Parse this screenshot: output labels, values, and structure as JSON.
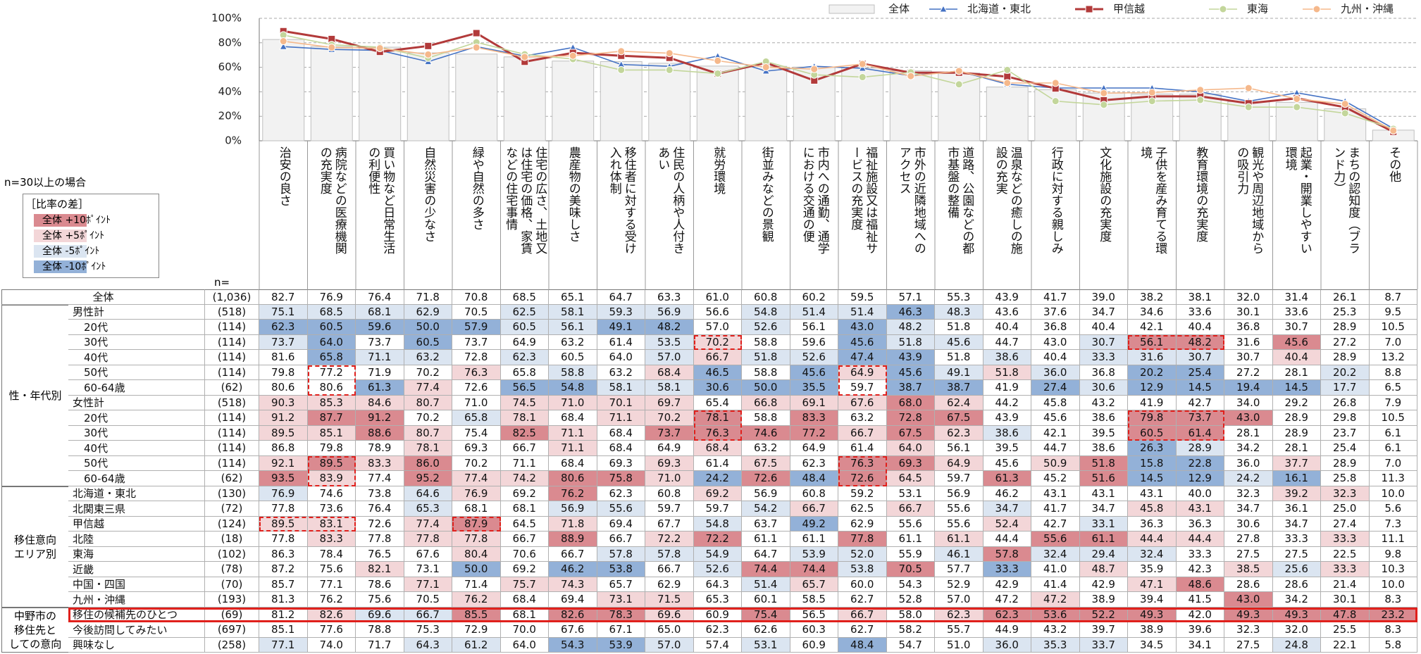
{
  "chart_data": {
    "type": "bar",
    "categories": [
      "治安の良さ",
      "病院などの医療機関の充実度",
      "買い物など日常生活の利便性",
      "自然災害の少なさ",
      "緑や自然の多さ",
      "住宅の広さ、土地又は住宅の価格、家賃などの住宅事情",
      "農産物の美味しさ",
      "移住者に対する受け入れ体制",
      "住民の人柄や人付きあい",
      "就労環境",
      "街並みなどの景観",
      "市内への通勤、通学における交通の便",
      "福祉施設又は福祉サービスの充実度",
      "市外の近隣地域へのアクセス",
      "道路、公園などの都市基盤の整備",
      "温泉などの癒しの施設の充実",
      "行政に対する親しみ",
      "文化施設の充実度",
      "子供を産み育てる環境",
      "教育環境の充実度",
      "観光や周辺地域からの吸引力",
      "起業・開業しやすい環境",
      "まちの認知度（ブランド力）",
      "その他"
    ],
    "series": [
      {
        "name": "全体",
        "kind": "bar",
        "color": "#f2f2f2",
        "values": [
          82.7,
          76.9,
          76.4,
          71.8,
          70.8,
          68.5,
          65.1,
          64.7,
          63.3,
          61.0,
          60.8,
          60.2,
          59.5,
          57.1,
          55.3,
          43.9,
          41.7,
          39.0,
          38.2,
          38.1,
          32.0,
          31.4,
          26.1,
          8.7
        ]
      },
      {
        "name": "北海道・東北",
        "kind": "line",
        "marker": "triangle",
        "color": "#4472c4",
        "values": [
          76.9,
          74.6,
          73.8,
          64.6,
          76.9,
          69.2,
          76.2,
          62.3,
          60.8,
          69.2,
          56.9,
          60.8,
          59.2,
          53.1,
          56.9,
          46.2,
          43.1,
          43.1,
          43.1,
          40.0,
          32.3,
          39.2,
          32.3,
          10.0
        ]
      },
      {
        "name": "甲信越",
        "kind": "line",
        "marker": "square",
        "color": "#b23a3a",
        "values": [
          89.5,
          83.1,
          72.6,
          77.4,
          87.9,
          64.5,
          71.8,
          69.4,
          67.7,
          54.8,
          63.7,
          49.2,
          62.9,
          55.6,
          55.6,
          52.4,
          42.7,
          33.1,
          36.3,
          36.3,
          30.6,
          34.7,
          27.4,
          7.3
        ]
      },
      {
        "name": "東海",
        "kind": "line",
        "marker": "circle",
        "color": "#c3d69b",
        "values": [
          86.3,
          78.4,
          76.5,
          67.6,
          80.4,
          70.6,
          66.7,
          57.8,
          57.8,
          54.9,
          64.7,
          53.9,
          52.0,
          55.9,
          46.1,
          57.8,
          32.4,
          29.4,
          32.4,
          33.3,
          27.5,
          27.5,
          22.5,
          9.8
        ]
      },
      {
        "name": "九州・沖縄",
        "kind": "line",
        "marker": "circle",
        "color": "#f5b88b",
        "values": [
          81.3,
          76.2,
          75.6,
          70.5,
          76.2,
          68.4,
          69.4,
          73.1,
          71.5,
          65.3,
          60.1,
          58.5,
          62.7,
          52.8,
          57.0,
          47.2,
          47.2,
          38.9,
          39.4,
          41.5,
          43.0,
          34.2,
          30.1,
          8.3
        ]
      }
    ],
    "ylim": [
      0,
      100
    ],
    "yticks": [
      {
        "value": 0,
        "label": "0%"
      },
      {
        "value": 20,
        "label": "20%"
      },
      {
        "value": 40,
        "label": "40%"
      },
      {
        "value": 60,
        "label": "60%"
      },
      {
        "value": 80,
        "label": "80%"
      },
      {
        "value": 100,
        "label": "100%"
      }
    ],
    "grid": true,
    "legend": "top-right"
  },
  "legend": {
    "note": "n=30以上の場合",
    "title": "［比率の差］",
    "items": [
      {
        "label": "全体 +10ﾎﾟｲﾝﾄ",
        "color": "#da8a90"
      },
      {
        "label": "全体 +5ﾎﾟｲﾝﾄ",
        "color": "#f3d6d8"
      },
      {
        "label": "全体 -5ﾎﾟｲﾝﾄ",
        "color": "#dbe5f1"
      },
      {
        "label": "全体 -10ﾎﾟｲﾝﾄ",
        "color": "#93b1d8"
      }
    ]
  },
  "table": {
    "n_header": "n=",
    "total": {
      "label": "全体",
      "n": "(1,036)",
      "values": [
        82.7,
        76.9,
        76.4,
        71.8,
        70.8,
        68.5,
        65.1,
        64.7,
        63.3,
        61.0,
        60.8,
        60.2,
        59.5,
        57.1,
        55.3,
        43.9,
        41.7,
        39.0,
        38.2,
        38.1,
        32.0,
        31.4,
        26.1,
        8.7
      ]
    },
    "groups": [
      {
        "label": [
          "性・年代別"
        ],
        "rows": [
          {
            "label": "男性計",
            "n": "(518)",
            "values": [
              75.1,
              68.5,
              68.1,
              62.9,
              70.5,
              62.5,
              58.1,
              59.3,
              56.9,
              56.6,
              54.8,
              51.4,
              51.4,
              46.3,
              48.3,
              43.6,
              37.6,
              34.7,
              34.6,
              33.6,
              30.1,
              33.6,
              25.3,
              9.5
            ]
          },
          {
            "label": "20代",
            "n": "(114)",
            "values": [
              62.3,
              60.5,
              59.6,
              50.0,
              57.9,
              60.5,
              56.1,
              49.1,
              48.2,
              57.0,
              52.6,
              56.1,
              43.0,
              48.2,
              51.8,
              40.4,
              36.8,
              40.4,
              42.1,
              40.4,
              36.8,
              30.7,
              28.9,
              10.5
            ]
          },
          {
            "label": "30代",
            "n": "(114)",
            "values": [
              73.7,
              64.0,
              73.7,
              60.5,
              73.7,
              64.9,
              63.2,
              61.4,
              53.5,
              70.2,
              58.8,
              59.6,
              45.6,
              51.8,
              45.6,
              44.7,
              43.0,
              30.7,
              56.1,
              48.2,
              31.6,
              45.6,
              27.2,
              7.0
            ]
          },
          {
            "label": "40代",
            "n": "(114)",
            "values": [
              81.6,
              65.8,
              71.1,
              63.2,
              72.8,
              62.3,
              60.5,
              64.0,
              57.0,
              66.7,
              51.8,
              52.6,
              47.4,
              43.9,
              51.8,
              38.6,
              40.4,
              33.3,
              31.6,
              30.7,
              30.7,
              40.4,
              28.9,
              13.2
            ]
          },
          {
            "label": "50代",
            "n": "(114)",
            "values": [
              79.8,
              77.2,
              71.9,
              70.2,
              76.3,
              65.8,
              58.8,
              63.2,
              68.4,
              46.5,
              58.8,
              45.6,
              64.9,
              45.6,
              49.1,
              51.8,
              36.0,
              36.8,
              20.2,
              25.4,
              27.2,
              28.1,
              20.2,
              8.8
            ]
          },
          {
            "label": "60-64歳",
            "n": "(62)",
            "values": [
              80.6,
              80.6,
              61.3,
              77.4,
              72.6,
              56.5,
              54.8,
              58.1,
              58.1,
              30.6,
              50.0,
              35.5,
              59.7,
              38.7,
              38.7,
              41.9,
              27.4,
              30.6,
              12.9,
              14.5,
              19.4,
              14.5,
              17.7,
              6.5
            ]
          },
          {
            "label": "女性計",
            "n": "(518)",
            "values": [
              90.3,
              85.3,
              84.6,
              80.7,
              71.0,
              74.5,
              71.0,
              70.1,
              69.7,
              65.4,
              66.8,
              69.1,
              67.6,
              68.0,
              62.4,
              44.2,
              45.8,
              43.2,
              41.9,
              42.7,
              34.0,
              29.2,
              26.8,
              7.9
            ]
          },
          {
            "label": "20代",
            "n": "(114)",
            "values": [
              91.2,
              87.7,
              91.2,
              70.2,
              65.8,
              78.1,
              68.4,
              71.1,
              70.2,
              78.1,
              58.8,
              83.3,
              63.2,
              72.8,
              67.5,
              43.9,
              45.6,
              38.6,
              79.8,
              73.7,
              43.0,
              28.9,
              29.8,
              10.5
            ]
          },
          {
            "label": "30代",
            "n": "(114)",
            "values": [
              89.5,
              85.1,
              88.6,
              80.7,
              75.4,
              82.5,
              71.1,
              68.4,
              73.7,
              76.3,
              74.6,
              77.2,
              66.7,
              67.5,
              62.3,
              38.6,
              42.1,
              39.5,
              60.5,
              61.4,
              28.1,
              28.9,
              23.7,
              6.1
            ]
          },
          {
            "label": "40代",
            "n": "(114)",
            "values": [
              86.8,
              79.8,
              78.9,
              78.1,
              69.3,
              66.7,
              71.1,
              68.4,
              64.9,
              68.4,
              63.2,
              64.9,
              61.4,
              64.0,
              56.1,
              39.5,
              44.7,
              38.6,
              26.3,
              28.9,
              34.2,
              28.1,
              25.4,
              6.1
            ]
          },
          {
            "label": "50代",
            "n": "(114)",
            "values": [
              92.1,
              89.5,
              83.3,
              86.0,
              70.2,
              71.1,
              68.4,
              69.3,
              69.3,
              61.4,
              67.5,
              62.3,
              76.3,
              69.3,
              64.9,
              45.6,
              50.9,
              51.8,
              15.8,
              22.8,
              36.0,
              37.7,
              28.9,
              7.0
            ]
          },
          {
            "label": "60-64歳",
            "n": "(62)",
            "values": [
              93.5,
              83.9,
              77.4,
              95.2,
              77.4,
              74.2,
              80.6,
              75.8,
              71.0,
              24.2,
              72.6,
              48.4,
              72.6,
              64.5,
              59.7,
              61.3,
              45.2,
              51.6,
              14.5,
              12.9,
              24.2,
              16.1,
              25.8,
              11.3
            ]
          }
        ]
      },
      {
        "label": [
          "移住意向",
          "エリア別"
        ],
        "rows": [
          {
            "label": "北海道・東北",
            "n": "(130)",
            "values": [
              76.9,
              74.6,
              73.8,
              64.6,
              76.9,
              69.2,
              76.2,
              62.3,
              60.8,
              69.2,
              56.9,
              60.8,
              59.2,
              53.1,
              56.9,
              46.2,
              43.1,
              43.1,
              43.1,
              40.0,
              32.3,
              39.2,
              32.3,
              10.0
            ]
          },
          {
            "label": "北関東三県",
            "n": "(72)",
            "values": [
              77.8,
              73.6,
              76.4,
              65.3,
              68.1,
              68.1,
              56.9,
              55.6,
              59.7,
              59.7,
              54.2,
              66.7,
              62.5,
              66.7,
              55.6,
              34.7,
              41.7,
              34.7,
              45.8,
              43.1,
              34.7,
              36.1,
              25.0,
              5.6
            ]
          },
          {
            "label": "甲信越",
            "n": "(124)",
            "values": [
              89.5,
              83.1,
              72.6,
              77.4,
              87.9,
              64.5,
              71.8,
              69.4,
              67.7,
              54.8,
              63.7,
              49.2,
              62.9,
              55.6,
              55.6,
              52.4,
              42.7,
              33.1,
              36.3,
              36.3,
              30.6,
              34.7,
              27.4,
              7.3
            ]
          },
          {
            "label": "北陸",
            "n": "(18)",
            "values": [
              77.8,
              83.3,
              77.8,
              77.8,
              77.8,
              66.7,
              88.9,
              66.7,
              72.2,
              72.2,
              61.1,
              61.1,
              77.8,
              61.1,
              61.1,
              44.4,
              55.6,
              61.1,
              44.4,
              44.4,
              27.8,
              33.3,
              33.3,
              11.1
            ]
          },
          {
            "label": "東海",
            "n": "(102)",
            "values": [
              86.3,
              78.4,
              76.5,
              67.6,
              80.4,
              70.6,
              66.7,
              57.8,
              57.8,
              54.9,
              64.7,
              53.9,
              52.0,
              55.9,
              46.1,
              57.8,
              32.4,
              29.4,
              32.4,
              33.3,
              27.5,
              27.5,
              22.5,
              9.8
            ]
          },
          {
            "label": "近畿",
            "n": "(78)",
            "values": [
              87.2,
              75.6,
              82.1,
              73.1,
              50.0,
              69.2,
              46.2,
              53.8,
              66.7,
              52.6,
              74.4,
              74.4,
              53.8,
              70.5,
              57.7,
              33.3,
              41.0,
              48.7,
              35.9,
              42.3,
              38.5,
              25.6,
              33.3,
              10.3
            ]
          },
          {
            "label": "中国・四国",
            "n": "(70)",
            "values": [
              85.7,
              77.1,
              78.6,
              77.1,
              71.4,
              75.7,
              74.3,
              65.7,
              62.9,
              64.3,
              51.4,
              65.7,
              60.0,
              54.3,
              52.9,
              42.9,
              41.4,
              42.9,
              47.1,
              48.6,
              28.6,
              28.6,
              21.4,
              10.0
            ]
          },
          {
            "label": "九州・沖縄",
            "n": "(193)",
            "values": [
              81.3,
              76.2,
              75.6,
              70.5,
              76.2,
              68.4,
              69.4,
              73.1,
              71.5,
              65.3,
              60.1,
              58.5,
              62.7,
              52.8,
              57.0,
              47.2,
              47.2,
              38.9,
              39.4,
              41.5,
              43.0,
              34.2,
              30.1,
              8.3
            ]
          }
        ]
      },
      {
        "label": [
          "中野市の",
          "移住先と",
          "しての意向"
        ],
        "rows": [
          {
            "label": "移住の候補先のひとつ",
            "n": "(69)",
            "values": [
              81.2,
              82.6,
              69.6,
              66.7,
              85.5,
              68.1,
              82.6,
              78.3,
              69.6,
              60.9,
              75.4,
              56.5,
              66.7,
              58.0,
              62.3,
              62.3,
              53.6,
              52.2,
              49.3,
              42.0,
              49.3,
              49.3,
              47.8,
              23.2
            ]
          },
          {
            "label": "今後訪問してみたい",
            "n": "(697)",
            "values": [
              85.1,
              77.6,
              78.8,
              75.3,
              72.9,
              70.0,
              67.6,
              67.1,
              65.0,
              62.3,
              62.6,
              60.3,
              62.7,
              58.2,
              55.7,
              44.9,
              43.2,
              39.7,
              38.9,
              39.6,
              32.3,
              32.0,
              25.5,
              8.3
            ]
          },
          {
            "label": "興味なし",
            "n": "(258)",
            "values": [
              77.1,
              74.0,
              71.7,
              64.3,
              61.2,
              64.0,
              54.3,
              53.9,
              57.0,
              57.4,
              53.1,
              60.9,
              48.4,
              54.7,
              51.0,
              36.0,
              35.3,
              33.7,
              34.5,
              34.1,
              27.5,
              24.8,
              22.1,
              5.8
            ]
          }
        ]
      }
    ]
  }
}
